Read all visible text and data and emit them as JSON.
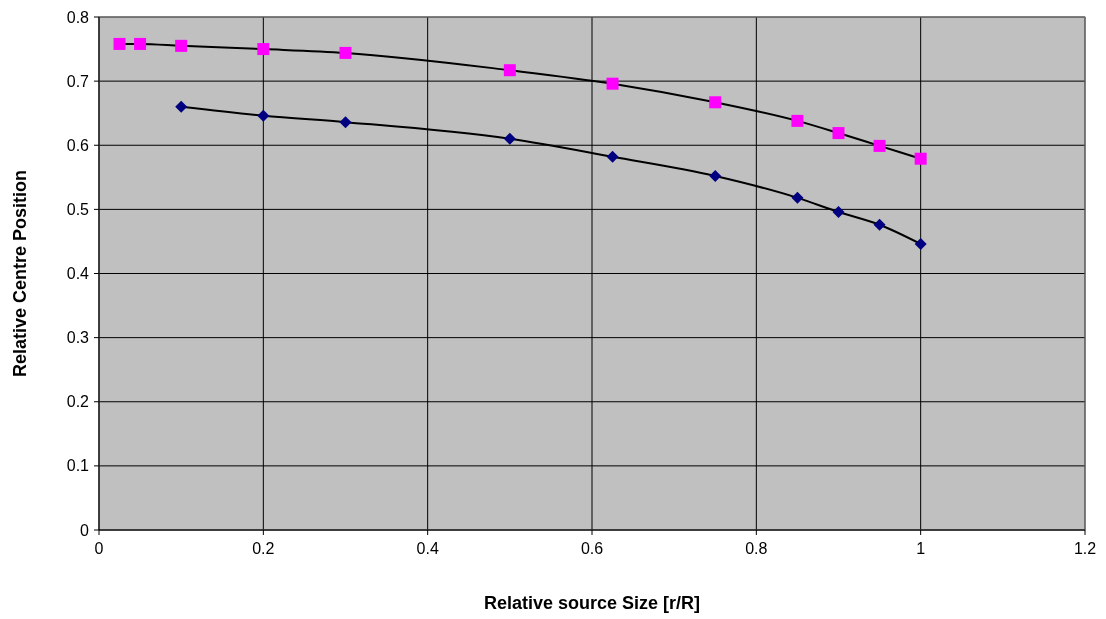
{
  "chart_data": {
    "type": "line",
    "xlabel": "Relative source Size [r/R]",
    "ylabel": "Relative Centre Position",
    "xlim": [
      0,
      1.2
    ],
    "xticks": [
      0,
      0.2,
      0.4,
      0.6,
      0.8,
      1,
      1.2
    ],
    "ylim": [
      0,
      0.8
    ],
    "yticks": [
      0,
      0.1,
      0.2,
      0.3,
      0.4,
      0.5,
      0.6,
      0.7,
      0.8
    ],
    "grid": true,
    "series": [
      {
        "color": "#ff00ff",
        "marker": "square",
        "x": [
          0.025,
          0.05,
          0.1,
          0.2,
          0.3,
          0.5,
          0.625,
          0.75,
          0.85,
          0.9,
          0.95,
          1.0
        ],
        "values": [
          0.758,
          0.758,
          0.755,
          0.75,
          0.744,
          0.717,
          0.696,
          0.667,
          0.638,
          0.619,
          0.599,
          0.579
        ]
      },
      {
        "color": "#000080",
        "marker": "diamond",
        "x": [
          0.1,
          0.2,
          0.3,
          0.5,
          0.625,
          0.75,
          0.85,
          0.9,
          0.95,
          1.0
        ],
        "values": [
          0.66,
          0.646,
          0.636,
          0.61,
          0.582,
          0.552,
          0.518,
          0.496,
          0.476,
          0.446
        ]
      }
    ]
  }
}
